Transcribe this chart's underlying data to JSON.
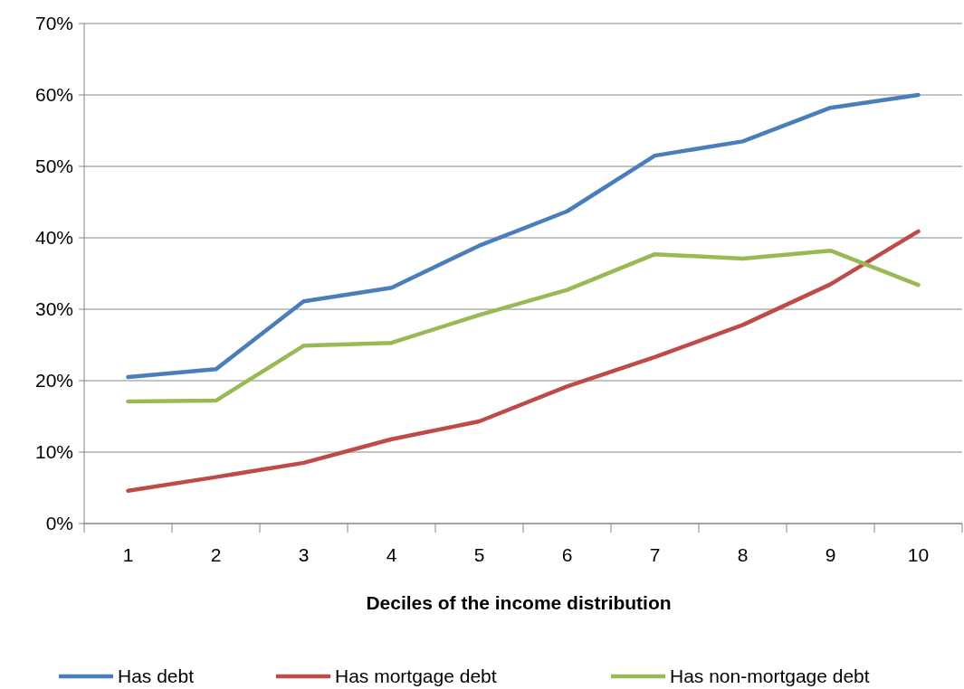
{
  "chart_data": {
    "type": "line",
    "xlabel": "Deciles of the income distribution",
    "categories": [
      "1",
      "2",
      "3",
      "4",
      "5",
      "6",
      "7",
      "8",
      "9",
      "10"
    ],
    "series": [
      {
        "name": "Has debt",
        "color": "#4a7ebb",
        "values": [
          20.5,
          21.6,
          31.1,
          33.0,
          38.9,
          43.7,
          51.5,
          53.5,
          58.2,
          60.0
        ]
      },
      {
        "name": "Has mortgage debt",
        "color": "#be4b48",
        "values": [
          4.6,
          6.5,
          8.5,
          11.8,
          14.3,
          19.2,
          23.3,
          27.8,
          33.5,
          40.9
        ]
      },
      {
        "name": "Has non-mortgage debt",
        "color": "#98b954",
        "values": [
          17.1,
          17.2,
          24.9,
          25.3,
          29.2,
          32.7,
          37.7,
          37.1,
          38.2,
          33.4
        ]
      }
    ],
    "ylim": [
      0,
      70
    ],
    "yticks": [
      {
        "value": 0,
        "label": "0%"
      },
      {
        "value": 10,
        "label": "10%"
      },
      {
        "value": 20,
        "label": "20%"
      },
      {
        "value": 30,
        "label": "30%"
      },
      {
        "value": 40,
        "label": "40%"
      },
      {
        "value": 50,
        "label": "50%"
      },
      {
        "value": 60,
        "label": "60%"
      },
      {
        "value": 70,
        "label": "70%"
      }
    ],
    "grid": "y",
    "legend": "bottom",
    "marker": "none",
    "line_style": "solid"
  }
}
